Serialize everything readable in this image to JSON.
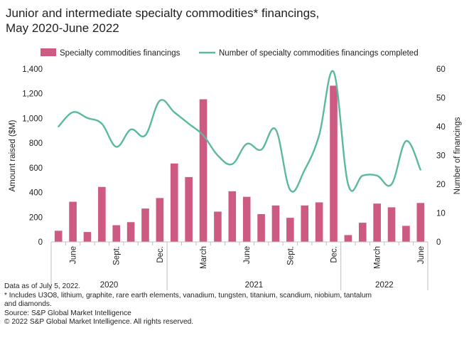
{
  "title_lines": [
    "Junior and intermediate specialty commodities* financings,",
    "May 2020-June 2022"
  ],
  "footer": {
    "line1": "Data as of July 5, 2022.",
    "line2": "* Includes U3O8, lithium, graphite, rare earth elements, vanadium, tungsten, titanium, scandium, niobium, tantalum",
    "line3": "and diamonds.",
    "line4": "Source: S&P Global Market Intelligence",
    "line5": "© 2022 S&P Global Market Intelligence. All rights reserved."
  },
  "colors": {
    "bar": "#cc5a82",
    "line": "#5ab9a0",
    "axis": "#bfbfbf",
    "text": "#222222"
  },
  "chart_data": {
    "type": "bar",
    "categories": [
      "May 2020",
      "Jun 2020",
      "Jul 2020",
      "Aug 2020",
      "Sep 2020",
      "Oct 2020",
      "Nov 2020",
      "Dec 2020",
      "Jan 2021",
      "Feb 2021",
      "Mar 2021",
      "Apr 2021",
      "May 2021",
      "Jun 2021",
      "Jul 2021",
      "Aug 2021",
      "Sep 2021",
      "Oct 2021",
      "Nov 2021",
      "Dec 2021",
      "Jan 2022",
      "Feb 2022",
      "Mar 2022",
      "Apr 2022",
      "May 2022",
      "Jun 2022"
    ],
    "tick_labels": {
      "1": "June",
      "4": "Sept.",
      "7": "Dec.",
      "10": "March",
      "13": "June",
      "16": "Sept.",
      "19": "Dec.",
      "22": "March",
      "25": "June"
    },
    "year_groups": [
      {
        "label": "2020",
        "start": 0,
        "end": 7
      },
      {
        "label": "2021",
        "start": 8,
        "end": 19
      },
      {
        "label": "2022",
        "start": 20,
        "end": 25
      }
    ],
    "series": [
      {
        "name": "Specialty commodities financings",
        "kind": "bar",
        "axis": "left",
        "values": [
          90,
          325,
          80,
          445,
          135,
          160,
          270,
          355,
          635,
          525,
          1155,
          245,
          410,
          365,
          225,
          295,
          195,
          295,
          320,
          1265,
          55,
          155,
          310,
          280,
          130,
          315
        ]
      },
      {
        "name": "Number of specialty commodities financings completed",
        "kind": "line",
        "axis": "right",
        "values": [
          40,
          45,
          43,
          41,
          33,
          39,
          37,
          49,
          45,
          41,
          37,
          30,
          27,
          34,
          32,
          39,
          18,
          25,
          37,
          59,
          20,
          23,
          23,
          20,
          35,
          25
        ]
      }
    ],
    "ylabel": "Amount raised ($M)",
    "y2label": "Number of financings",
    "ylim": [
      0,
      1400
    ],
    "y2lim": [
      0,
      60
    ],
    "yticks": [
      "0",
      "200",
      "400",
      "600",
      "800",
      "1,000",
      "1,200",
      "1,400"
    ],
    "y2ticks": [
      "0",
      "10",
      "20",
      "30",
      "40",
      "50",
      "60"
    ],
    "legend_position": "top",
    "grid": false
  }
}
